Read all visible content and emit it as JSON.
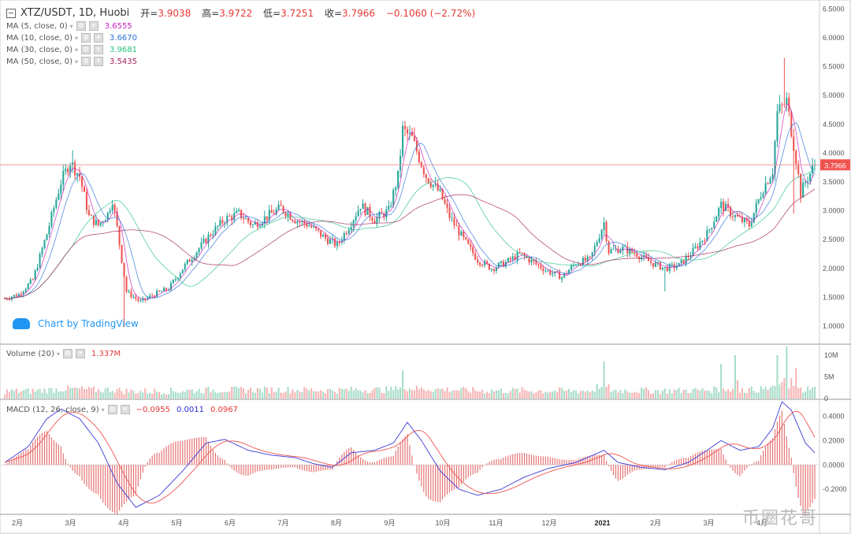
{
  "header": {
    "symbol": "XTZ/USDT, 1D, Huobi",
    "ohlc": [
      {
        "k": "开=",
        "v": "3.9038"
      },
      {
        "k": "高=",
        "v": "3.9722"
      },
      {
        "k": "低=",
        "v": "3.7251"
      },
      {
        "k": "收=",
        "v": "3.7966"
      }
    ],
    "change": "−0.1060 (−2.72%)"
  },
  "indicators": [
    {
      "label": "MA (5, close, 0)",
      "value": "3.6555",
      "color": "#c51fbd"
    },
    {
      "label": "MA (10, close, 0)",
      "value": "3.6670",
      "color": "#2a6fdb"
    },
    {
      "label": "MA (30, close, 0)",
      "value": "3.9681",
      "color": "#26c281"
    },
    {
      "label": "MA (50, close, 0)",
      "value": "3.5435",
      "color": "#a3205d"
    }
  ],
  "volume_legend": {
    "label": "Volume (20)",
    "value": "1.337M"
  },
  "macd_legend": {
    "label": "MACD (12, 26, close, 9)",
    "values": [
      "−0.0955",
      "0.0011",
      "0.0967"
    ],
    "colors": [
      "#e53935",
      "#2a2ad8",
      "#e53935"
    ]
  },
  "brand": "Chart by TradingView",
  "watermark": "币圈花哥",
  "colors": {
    "up": "#26a69a",
    "down": "#ef5350",
    "upVol": "#a8dcc8",
    "downVol": "#f6b4b4",
    "ma5": "#c51fbd",
    "ma10": "#2a6fdb",
    "ma30": "#26c281",
    "ma50": "#a3205d",
    "macd": "#3a3ad8",
    "signal": "#ef5350",
    "last_price_label": "#ef5350"
  },
  "chart_data": {
    "type": "candlestick",
    "price_axis": {
      "ticks": [
        "6.5000",
        "6.0000",
        "5.5000",
        "5.0000",
        "4.5000",
        "4.0000",
        "3.5000",
        "3.0000",
        "2.5000",
        "2.0000",
        "1.5000",
        "1.0000"
      ],
      "range": [
        0.7,
        6.6
      ],
      "last_price": "3.7966"
    },
    "volume_axis": {
      "ticks": [
        "10M",
        "5M",
        "0"
      ],
      "range": [
        0,
        12
      ]
    },
    "macd_axis": {
      "ticks": [
        "0.4000",
        "0.2000",
        "0.0000",
        "-0.2000"
      ],
      "range": [
        -0.4,
        0.52
      ]
    },
    "time_axis": {
      "labels": [
        "2月",
        "3月",
        "4月",
        "5月",
        "6月",
        "7月",
        "8月",
        "9月",
        "10月",
        "11月",
        "12月",
        "2021",
        "2月",
        "3月",
        "4月"
      ]
    },
    "price_path": [
      [
        0,
        1.48
      ],
      [
        6,
        1.55
      ],
      [
        12,
        1.8
      ],
      [
        18,
        2.6
      ],
      [
        24,
        3.5
      ],
      [
        28,
        3.85
      ],
      [
        32,
        3.6
      ],
      [
        36,
        2.9
      ],
      [
        40,
        2.75
      ],
      [
        44,
        2.95
      ],
      [
        46,
        3.2
      ],
      [
        48,
        2.7
      ],
      [
        52,
        1.6
      ],
      [
        58,
        1.42
      ],
      [
        64,
        1.55
      ],
      [
        70,
        1.65
      ],
      [
        76,
        2.0
      ],
      [
        82,
        2.3
      ],
      [
        88,
        2.6
      ],
      [
        94,
        2.85
      ],
      [
        100,
        2.95
      ],
      [
        106,
        2.75
      ],
      [
        112,
        2.9
      ],
      [
        118,
        3.05
      ],
      [
        124,
        2.85
      ],
      [
        130,
        2.75
      ],
      [
        136,
        2.55
      ],
      [
        142,
        2.4
      ],
      [
        148,
        2.8
      ],
      [
        152,
        3.1
      ],
      [
        158,
        2.85
      ],
      [
        164,
        3.0
      ],
      [
        168,
        3.6
      ],
      [
        170,
        4.4
      ],
      [
        174,
        4.25
      ],
      [
        180,
        3.6
      ],
      [
        186,
        3.3
      ],
      [
        190,
        2.9
      ],
      [
        196,
        2.5
      ],
      [
        202,
        2.15
      ],
      [
        208,
        2.0
      ],
      [
        214,
        2.1
      ],
      [
        220,
        2.25
      ],
      [
        226,
        2.1
      ],
      [
        232,
        1.95
      ],
      [
        238,
        1.85
      ],
      [
        244,
        2.1
      ],
      [
        250,
        2.15
      ],
      [
        256,
        2.8
      ],
      [
        258,
        2.3
      ],
      [
        264,
        2.35
      ],
      [
        270,
        2.25
      ],
      [
        276,
        2.1
      ],
      [
        282,
        2.0
      ],
      [
        288,
        2.05
      ],
      [
        294,
        2.3
      ],
      [
        300,
        2.6
      ],
      [
        306,
        3.1
      ],
      [
        312,
        2.9
      ],
      [
        318,
        2.75
      ],
      [
        324,
        3.4
      ],
      [
        328,
        3.7
      ],
      [
        330,
        4.7
      ],
      [
        334,
        4.9
      ],
      [
        336,
        4.4
      ],
      [
        338,
        3.9
      ],
      [
        340,
        3.3
      ],
      [
        342,
        3.5
      ],
      [
        346,
        3.8
      ]
    ],
    "volume_spikes": [
      [
        170,
        6.5
      ],
      [
        256,
        8.5
      ],
      [
        306,
        8
      ],
      [
        312,
        10
      ],
      [
        330,
        10
      ],
      [
        334,
        12
      ],
      [
        338,
        7
      ]
    ],
    "macd_path": [
      [
        0,
        0.02
      ],
      [
        10,
        0.15
      ],
      [
        18,
        0.38
      ],
      [
        24,
        0.46
      ],
      [
        32,
        0.38
      ],
      [
        40,
        0.18
      ],
      [
        48,
        -0.15
      ],
      [
        56,
        -0.35
      ],
      [
        66,
        -0.25
      ],
      [
        76,
        -0.05
      ],
      [
        86,
        0.18
      ],
      [
        94,
        0.21
      ],
      [
        104,
        0.12
      ],
      [
        114,
        0.08
      ],
      [
        124,
        0.06
      ],
      [
        132,
        0.01
      ],
      [
        140,
        -0.02
      ],
      [
        148,
        0.1
      ],
      [
        158,
        0.12
      ],
      [
        166,
        0.18
      ],
      [
        172,
        0.35
      ],
      [
        178,
        0.2
      ],
      [
        186,
        -0.05
      ],
      [
        194,
        -0.2
      ],
      [
        202,
        -0.25
      ],
      [
        212,
        -0.2
      ],
      [
        222,
        -0.1
      ],
      [
        232,
        -0.03
      ],
      [
        244,
        0.02
      ],
      [
        256,
        0.12
      ],
      [
        262,
        0.02
      ],
      [
        272,
        -0.02
      ],
      [
        282,
        -0.04
      ],
      [
        292,
        0.02
      ],
      [
        300,
        0.12
      ],
      [
        306,
        0.2
      ],
      [
        314,
        0.12
      ],
      [
        322,
        0.15
      ],
      [
        328,
        0.3
      ],
      [
        332,
        0.52
      ],
      [
        336,
        0.45
      ],
      [
        342,
        0.18
      ],
      [
        346,
        0.1
      ]
    ]
  }
}
